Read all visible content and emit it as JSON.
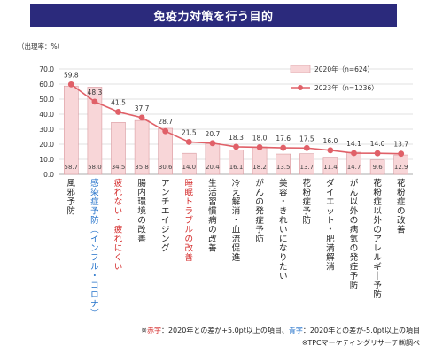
{
  "title": "免疫力対策を行う目的",
  "colors": {
    "title_bg": "#2b2a7c",
    "bar_fill": "#f8d6d8",
    "bar_stroke": "#d99aa0",
    "line": "#e06068",
    "label_red": "#d42a2a",
    "label_blue": "#1f6fc9"
  },
  "chart_data": {
    "type": "bar",
    "unit_label": "（出現率：%）",
    "ylim": [
      0,
      70
    ],
    "yticks": [
      "0.0",
      "10.0",
      "20.0",
      "30.0",
      "40.0",
      "50.0",
      "60.0",
      "70.0"
    ],
    "grid": true,
    "legend_position": "top-right",
    "categories": [
      "風邪予防",
      "感染症予防（インフル・コロナ）",
      "疲れない・疲れにくい",
      "腸内環境の改善",
      "アンチエイジング",
      "睡眠トラブルの改善",
      "生活習慣病の改善",
      "冷え解消・血流促進",
      "がんの発症予防",
      "美容・きれいになりたい",
      "花粉症予防",
      "ダイエット・肥満解消",
      "がん以外の病気の発症予防",
      "花粉症以外のアレルギー予防",
      "花粉症の改善"
    ],
    "category_colors": [
      "",
      "blue",
      "red",
      "",
      "",
      "red",
      "",
      "",
      "",
      "",
      "",
      "",
      "",
      "",
      ""
    ],
    "series": [
      {
        "name": "2020年（n=624）",
        "type": "bar",
        "values": [
          58.7,
          58.0,
          34.5,
          35.8,
          30.6,
          14.0,
          20.4,
          16.1,
          18.2,
          13.5,
          13.7,
          11.4,
          14.7,
          9.6,
          12.9
        ]
      },
      {
        "name": "2023年（n=1236）",
        "type": "line",
        "values": [
          59.8,
          48.3,
          41.5,
          37.7,
          28.7,
          21.5,
          20.7,
          18.3,
          18.0,
          17.6,
          17.5,
          16.0,
          14.1,
          14.0,
          13.7
        ]
      }
    ]
  },
  "footnotes": {
    "line1_prefix": "※",
    "line1_red": "赤字",
    "line1_mid": "：2020年との差が+5.0pt以上の項目、",
    "line1_blue": "青字",
    "line1_suffix": "：2020年との差が-5.0pt以上の項目",
    "line2": "※TPCマーケティングリサーチ㈱調べ"
  }
}
